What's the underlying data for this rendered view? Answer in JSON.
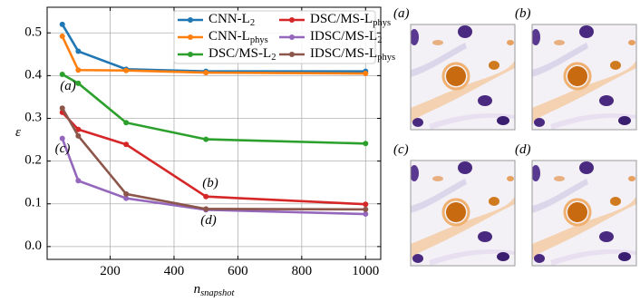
{
  "chart_data": {
    "type": "line",
    "x": [
      50,
      100,
      250,
      500,
      1000
    ],
    "series": [
      {
        "name": "CNN-L_2",
        "color": "#1f77b4",
        "values": [
          0.52,
          0.457,
          0.415,
          0.41,
          0.41
        ]
      },
      {
        "name": "CNN-L_phys",
        "color": "#ff7f0e",
        "values": [
          0.492,
          0.413,
          0.412,
          0.407,
          0.405
        ]
      },
      {
        "name": "DSC/MS-L_2",
        "color": "#2ca02c",
        "values": [
          0.403,
          0.382,
          0.29,
          0.251,
          0.241
        ]
      },
      {
        "name": "DSC/MS-L_phys",
        "color": "#d62728",
        "values": [
          0.314,
          0.274,
          0.239,
          0.117,
          0.099
        ]
      },
      {
        "name": "IDSC/MS-L_2",
        "color": "#9467bd",
        "values": [
          0.253,
          0.154,
          0.113,
          0.086,
          0.076
        ]
      },
      {
        "name": "IDSC/MS-L_phys",
        "color": "#8c564b",
        "values": [
          0.324,
          0.259,
          0.123,
          0.088,
          0.087
        ]
      }
    ],
    "xlabel": "n_snapshot",
    "ylabel": "ε",
    "xlim": [
      2.5,
      1047.5
    ],
    "ylim": [
      -0.03,
      0.56
    ],
    "xticks": [
      200,
      400,
      600,
      800,
      1000
    ],
    "yticks": [
      {
        "value": 0,
        "label": "0.0"
      },
      0.1,
      0.2,
      0.3,
      0.4,
      0.5
    ],
    "grid": true,
    "legend": "upper right",
    "annotations": [
      {
        "text": "(a)",
        "color": "#2ca02c"
      },
      {
        "text": "(b)",
        "color": "#d62728"
      },
      {
        "text": "(c)",
        "color": "#9467bd"
      },
      {
        "text": "(d)",
        "color": "#9467bd"
      }
    ]
  },
  "panels": [
    "(a)",
    "(b)",
    "(c)",
    "(d)"
  ]
}
